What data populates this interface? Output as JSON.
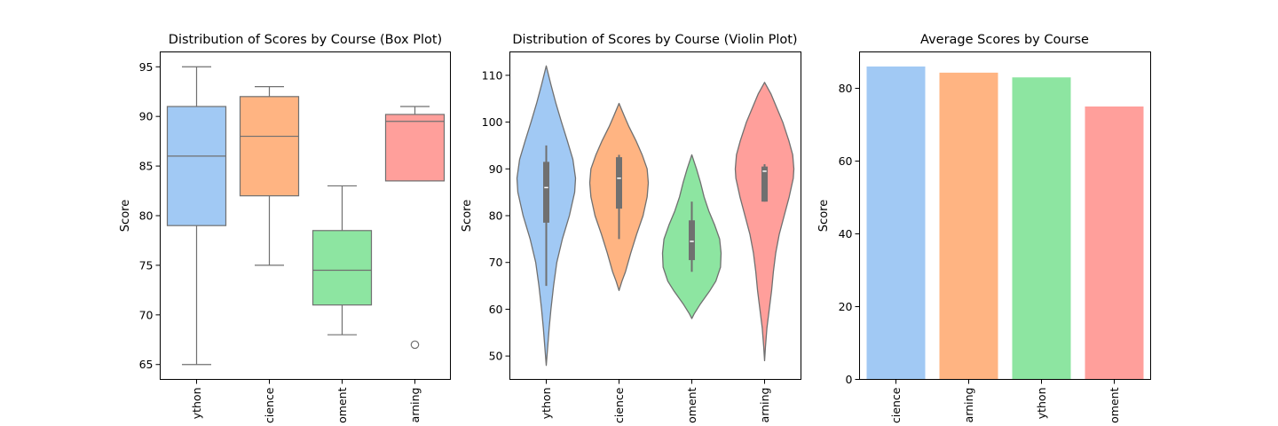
{
  "chart_data": [
    {
      "type": "box",
      "title": "Distribution of Scores by Course (Box Plot)",
      "xlabel": "",
      "ylabel": "Score",
      "ylim": [
        63.5,
        96.5
      ],
      "yticks": [
        65,
        70,
        75,
        80,
        85,
        90,
        95
      ],
      "categories": [
        "Python",
        "Science",
        "Development",
        "Learning"
      ],
      "xtick_labels": [
        "ython",
        "cience",
        "oment",
        "arning"
      ],
      "boxes": [
        {
          "whislo": 65,
          "q1": 79,
          "med": 86,
          "q3": 91,
          "whishi": 95,
          "fliers": []
        },
        {
          "whislo": 75,
          "q1": 82,
          "med": 88,
          "q3": 92,
          "whishi": 93,
          "fliers": []
        },
        {
          "whislo": 68,
          "q1": 71,
          "med": 74.5,
          "q3": 78.5,
          "whishi": 83,
          "fliers": []
        },
        {
          "whislo": 83.5,
          "q1": 83.5,
          "med": 89.5,
          "q3": 90.2,
          "whishi": 91,
          "fliers": [
            67
          ]
        }
      ],
      "colors": [
        "#a1c9f4",
        "#ffb482",
        "#8de5a1",
        "#ff9f9b"
      ]
    },
    {
      "type": "violin",
      "title": "Distribution of Scores by Course (Violin Plot)",
      "xlabel": "",
      "ylabel": "Score",
      "ylim": [
        45,
        115
      ],
      "yticks": [
        50,
        60,
        70,
        80,
        90,
        100,
        110
      ],
      "categories": [
        "Python",
        "Science",
        "Development",
        "Learning"
      ],
      "xtick_labels": [
        "ython",
        "cience",
        "oment",
        "arning"
      ],
      "violins": [
        {
          "ymin": 48,
          "ymax": 112,
          "profile": [
            [
              48,
              0
            ],
            [
              52,
              0.05
            ],
            [
              56,
              0.1
            ],
            [
              60,
              0.16
            ],
            [
              65,
              0.25
            ],
            [
              70,
              0.36
            ],
            [
              75,
              0.55
            ],
            [
              80,
              0.79
            ],
            [
              85,
              0.97
            ],
            [
              88,
              1.0
            ],
            [
              92,
              0.91
            ],
            [
              96,
              0.72
            ],
            [
              100,
              0.52
            ],
            [
              104,
              0.33
            ],
            [
              108,
              0.16
            ],
            [
              112,
              0
            ]
          ]
        },
        {
          "ymin": 64,
          "ymax": 104,
          "profile": [
            [
              64,
              0
            ],
            [
              66,
              0.1
            ],
            [
              68,
              0.22
            ],
            [
              72,
              0.4
            ],
            [
              76,
              0.6
            ],
            [
              80,
              0.82
            ],
            [
              84,
              0.96
            ],
            [
              87,
              1.0
            ],
            [
              90,
              0.96
            ],
            [
              93,
              0.79
            ],
            [
              96,
              0.58
            ],
            [
              99,
              0.34
            ],
            [
              101,
              0.2
            ],
            [
              104,
              0
            ]
          ]
        },
        {
          "ymin": 58,
          "ymax": 93,
          "profile": [
            [
              58,
              0
            ],
            [
              59,
              0.08
            ],
            [
              61,
              0.28
            ],
            [
              64,
              0.62
            ],
            [
              66,
              0.82
            ],
            [
              69,
              0.98
            ],
            [
              72,
              1.0
            ],
            [
              75,
              0.95
            ],
            [
              78,
              0.78
            ],
            [
              81,
              0.58
            ],
            [
              84,
              0.42
            ],
            [
              87,
              0.3
            ],
            [
              90,
              0.16
            ],
            [
              93,
              0
            ]
          ]
        },
        {
          "ymin": 49,
          "ymax": 108.5,
          "profile": [
            [
              49,
              0
            ],
            [
              52,
              0.03
            ],
            [
              56,
              0.08
            ],
            [
              60,
              0.16
            ],
            [
              64,
              0.24
            ],
            [
              68,
              0.3
            ],
            [
              72,
              0.38
            ],
            [
              76,
              0.5
            ],
            [
              80,
              0.67
            ],
            [
              84,
              0.84
            ],
            [
              88,
              0.98
            ],
            [
              90,
              1.0
            ],
            [
              93,
              0.96
            ],
            [
              96,
              0.83
            ],
            [
              100,
              0.62
            ],
            [
              103,
              0.42
            ],
            [
              106,
              0.22
            ],
            [
              108.5,
              0
            ]
          ]
        }
      ],
      "inner_boxes": [
        {
          "whislo": 65,
          "q1": 78.5,
          "med": 86,
          "q3": 91.5,
          "whishi": 95
        },
        {
          "whislo": 75,
          "q1": 81.5,
          "med": 88,
          "q3": 92.5,
          "whishi": 93
        },
        {
          "whislo": 68,
          "q1": 70.5,
          "med": 74.5,
          "q3": 79,
          "whishi": 83
        },
        {
          "whislo": 83,
          "q1": 83,
          "med": 89.5,
          "q3": 90.5,
          "whishi": 91
        }
      ],
      "colors": [
        "#a1c9f4",
        "#ffb482",
        "#8de5a1",
        "#ff9f9b"
      ]
    },
    {
      "type": "bar",
      "title": "Average Scores by Course",
      "xlabel": "",
      "ylabel": "Score",
      "ylim": [
        0,
        90
      ],
      "yticks": [
        0,
        20,
        40,
        60,
        80
      ],
      "categories": [
        "Science",
        "Learning",
        "Python",
        "Development"
      ],
      "xtick_labels": [
        "cience",
        "arning",
        "ython",
        "oment"
      ],
      "values": [
        86,
        84.3,
        83,
        75
      ],
      "colors": [
        "#a1c9f4",
        "#ffb482",
        "#8de5a1",
        "#ff9f9b"
      ]
    }
  ]
}
